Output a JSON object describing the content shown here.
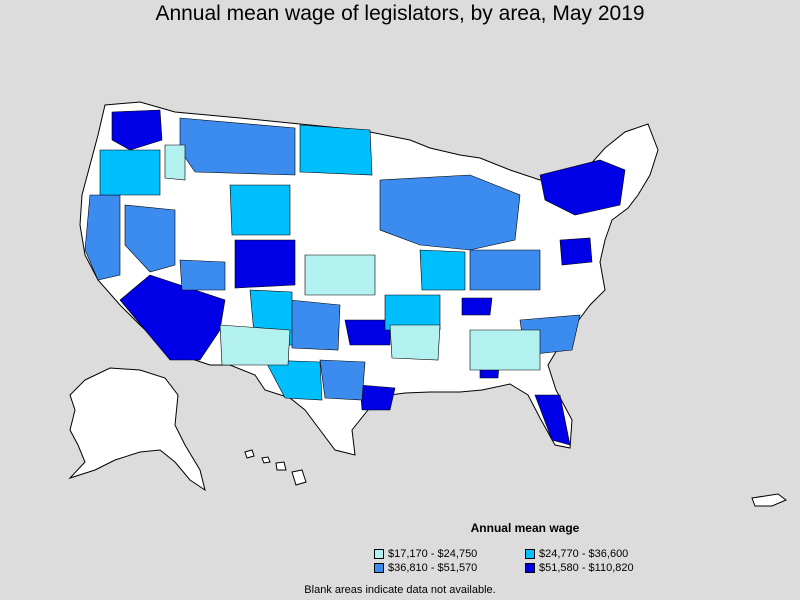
{
  "title": "Annual mean wage of legislators, by area, May 2019",
  "legend": {
    "title": "Annual mean wage",
    "items": [
      {
        "label": "$17,170 - $24,750",
        "color": "#b3f0f0"
      },
      {
        "label": "$24,770 - $36,600",
        "color": "#00bfff"
      },
      {
        "label": "$36,810 - $51,570",
        "color": "#3c8cf0"
      },
      {
        "label": "$51,580 - $110,820",
        "color": "#0000e6"
      }
    ]
  },
  "footnote": "Blank areas indicate data not available.",
  "colors": {
    "background": "#dcdcdc",
    "no_data": "#ffffff",
    "border": "#000000"
  }
}
